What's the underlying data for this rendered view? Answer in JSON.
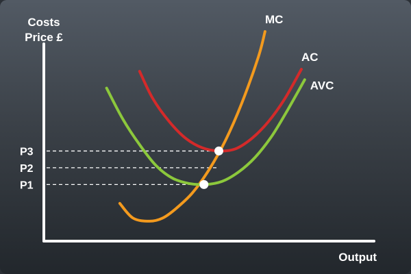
{
  "chart_data": {
    "type": "line",
    "ylabel": [
      "Costs",
      "Price £"
    ],
    "xlabel": "Output",
    "xlim": [
      0,
      10
    ],
    "ylim": [
      0,
      10
    ],
    "grid": false,
    "price_levels": [
      {
        "label": "P3",
        "y": 4.3
      },
      {
        "label": "P2",
        "y": 3.5
      },
      {
        "label": "P1",
        "y": 2.7
      }
    ],
    "series": [
      {
        "name": "MC",
        "color": "#f39a1e",
        "x": [
          2.3,
          2.7,
          3.2,
          3.6,
          4.0,
          4.5,
          5.0,
          5.5,
          6.0,
          6.5,
          6.7
        ],
        "y": [
          1.8,
          1.1,
          0.95,
          1.1,
          1.55,
          2.3,
          3.4,
          4.8,
          6.6,
          8.8,
          10.0
        ]
      },
      {
        "name": "AC",
        "color": "#d42a2a",
        "x": [
          2.9,
          3.3,
          3.8,
          4.3,
          4.8,
          5.3,
          5.8,
          6.3,
          6.8,
          7.3,
          7.8
        ],
        "y": [
          8.1,
          6.8,
          5.7,
          4.9,
          4.45,
          4.3,
          4.4,
          4.9,
          5.7,
          6.8,
          8.2
        ]
      },
      {
        "name": "AVC",
        "color": "#8cc83c",
        "x": [
          1.9,
          2.4,
          2.9,
          3.4,
          3.9,
          4.4,
          4.9,
          5.4,
          5.9,
          6.4,
          6.9,
          7.4,
          7.9
        ],
        "y": [
          7.3,
          5.8,
          4.6,
          3.6,
          3.0,
          2.75,
          2.7,
          2.85,
          3.3,
          4.0,
          5.0,
          6.3,
          7.7
        ]
      }
    ],
    "markers": [
      {
        "x": 5.3,
        "y": 4.3
      },
      {
        "x": 4.85,
        "y": 2.7
      }
    ]
  }
}
